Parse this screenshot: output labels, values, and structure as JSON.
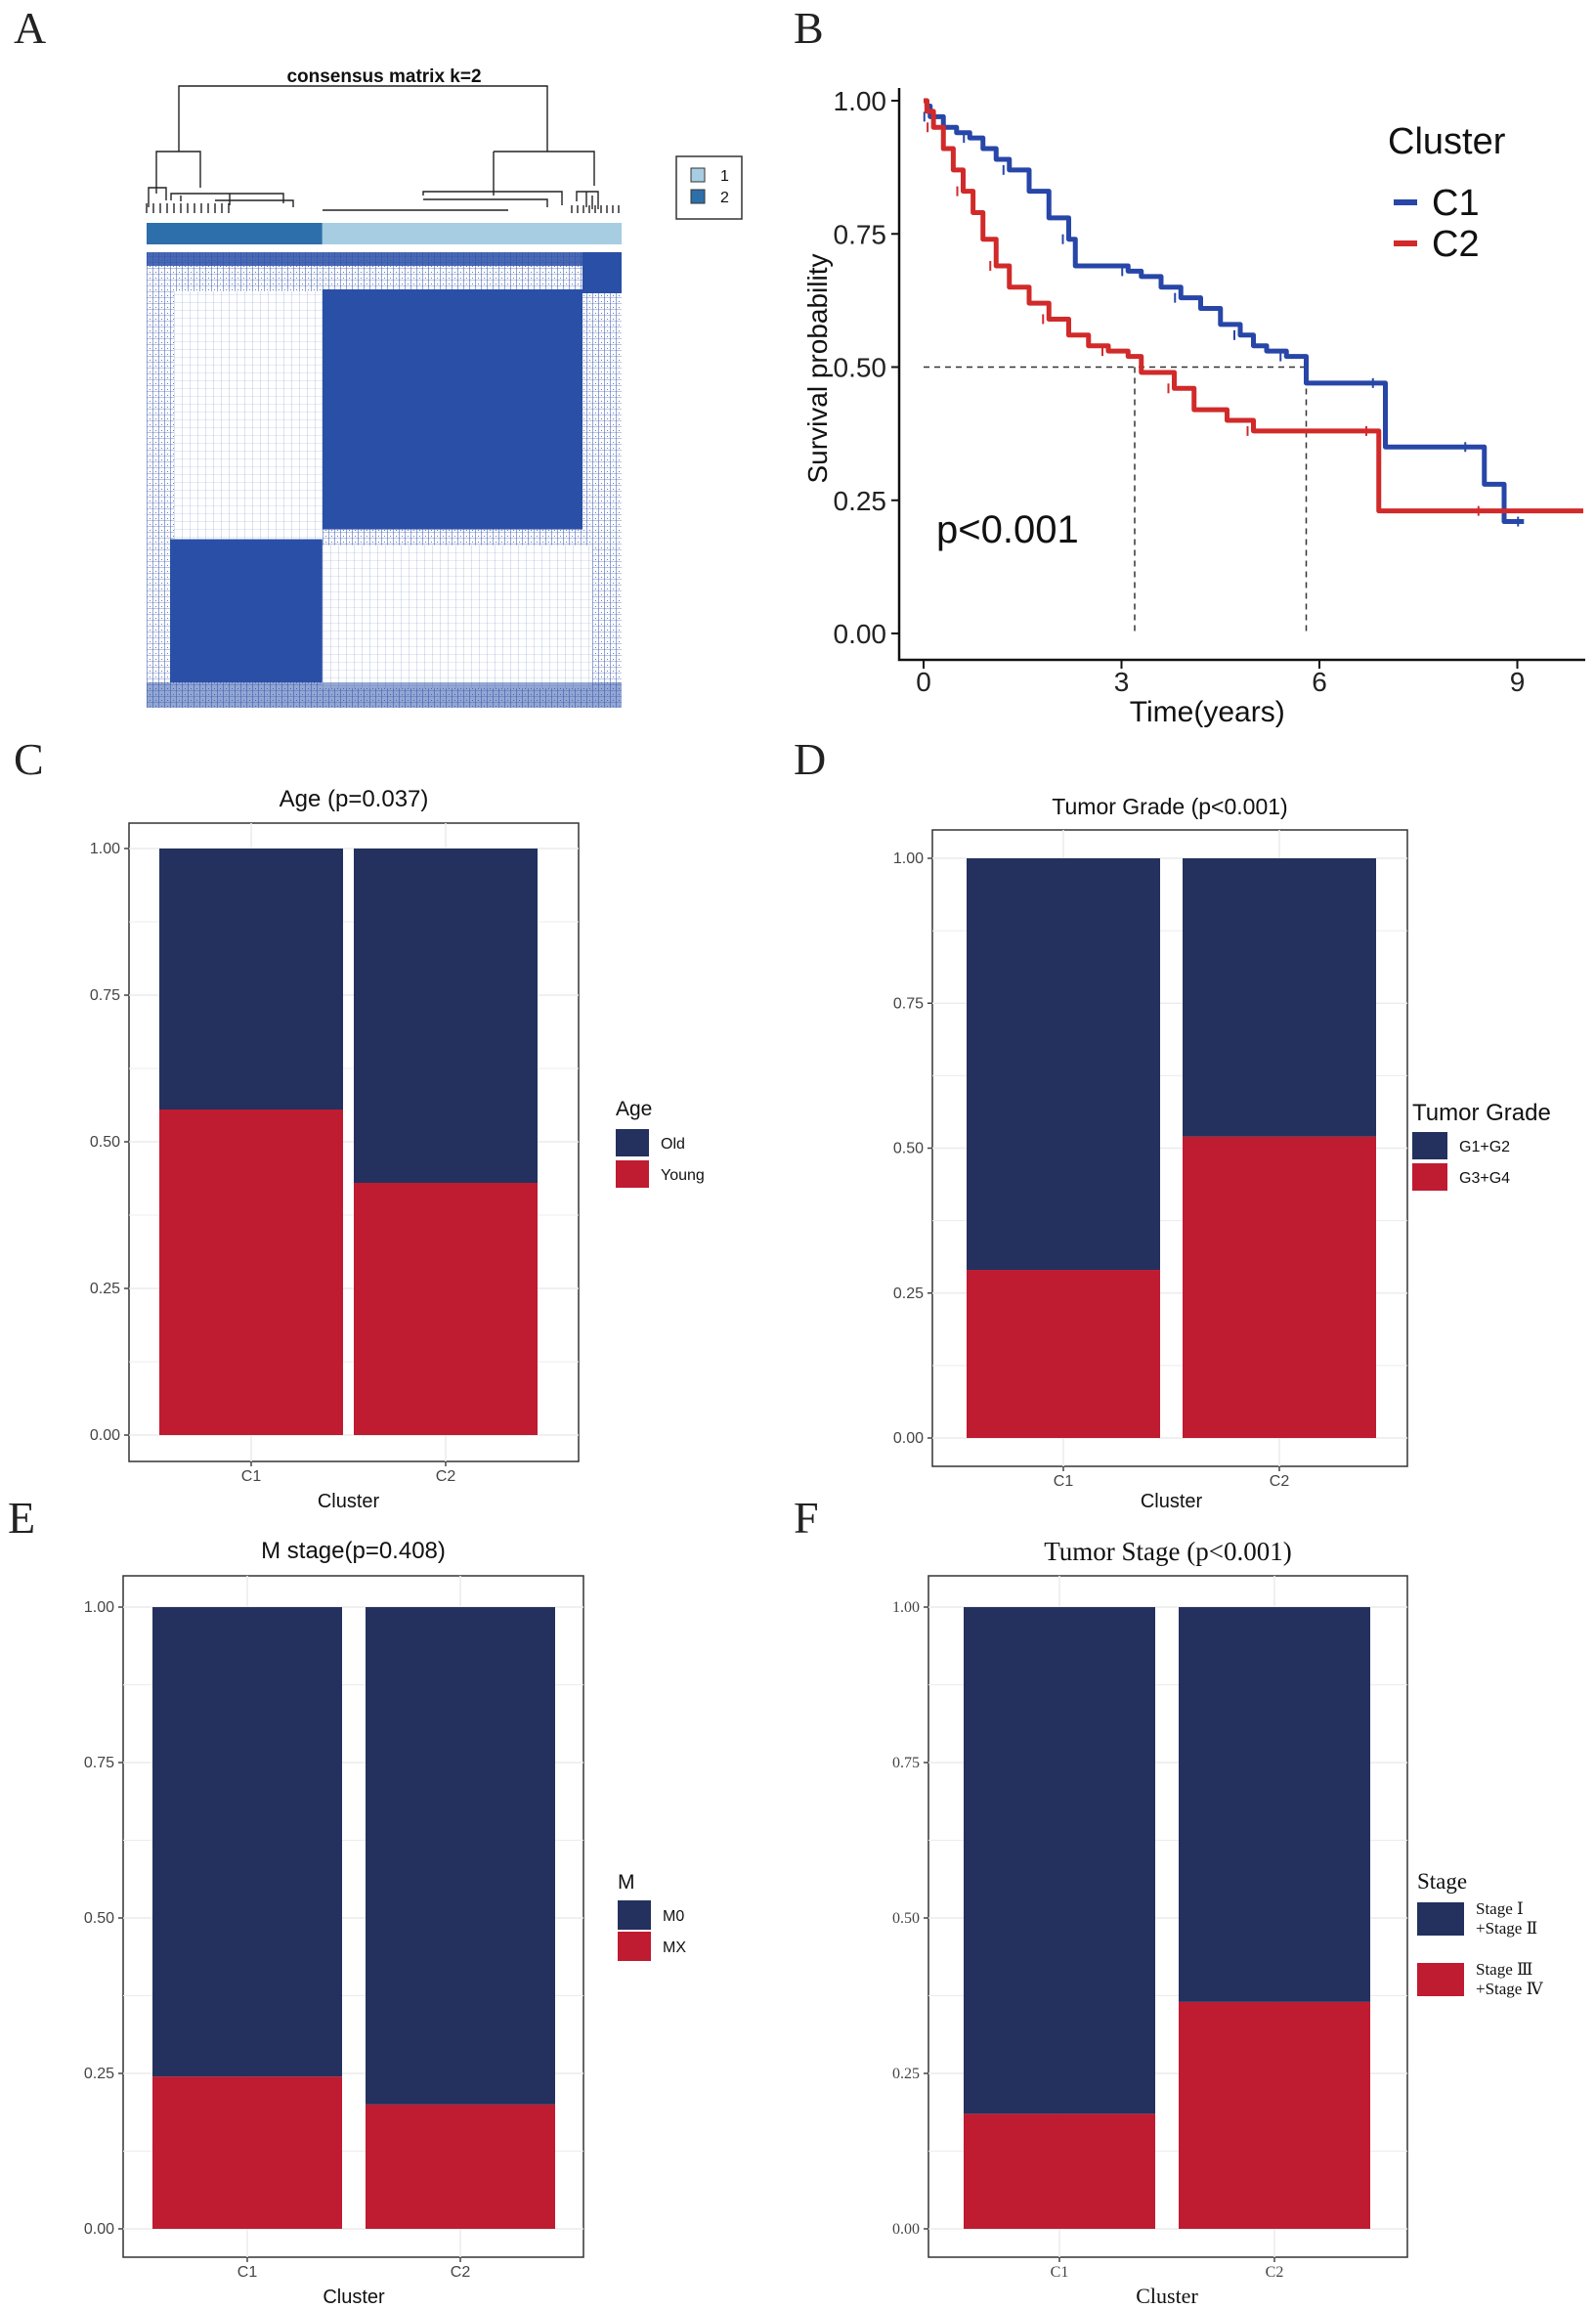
{
  "panel_letters": [
    "A",
    "B",
    "C",
    "D",
    "E",
    "F"
  ],
  "colors": {
    "navy": "#24315e",
    "crimson": "#bf1b31",
    "c1_line": "#2746a8",
    "c2_line": "#d12a2a",
    "matrix_blue": "#2a4fa7",
    "matrix_light": "#a7cde2",
    "matrix_dark": "#2d6faa"
  },
  "chart_data": [
    {
      "panel": "A",
      "type": "heatmap",
      "title": "consensus matrix k=2",
      "legend": [
        "1",
        "2"
      ],
      "cluster_fractions": [
        0.37,
        0.63
      ]
    },
    {
      "panel": "B",
      "type": "line",
      "title": "",
      "xlabel": "Time(years)",
      "ylabel": "Survival probability",
      "xlim": [
        0,
        10
      ],
      "ylim": [
        0,
        1
      ],
      "xticks": [
        "0",
        "3",
        "6",
        "9"
      ],
      "yticks": [
        "0.00",
        "0.25",
        "0.50",
        "0.75",
        "1.00"
      ],
      "legend_title": "Cluster",
      "legend": [
        "C1",
        "C2"
      ],
      "annotation": "p<0.001",
      "median_survival": {
        "C1": 5.8,
        "C2": 3.2
      },
      "series": [
        {
          "name": "C1",
          "x": [
            0,
            0.05,
            0.1,
            0.3,
            0.5,
            0.7,
            0.9,
            1.1,
            1.3,
            1.6,
            1.9,
            2.2,
            2.3,
            2.8,
            3.1,
            3.3,
            3.6,
            3.9,
            4.2,
            4.5,
            4.8,
            5.0,
            5.2,
            5.5,
            5.8,
            6.0,
            6.9,
            7.0,
            7.5,
            8.3,
            8.5,
            8.8,
            9.1
          ],
          "y": [
            1.0,
            0.99,
            0.97,
            0.95,
            0.94,
            0.93,
            0.91,
            0.89,
            0.87,
            0.83,
            0.78,
            0.74,
            0.69,
            0.69,
            0.68,
            0.67,
            0.65,
            0.63,
            0.61,
            0.58,
            0.56,
            0.54,
            0.53,
            0.52,
            0.47,
            0.47,
            0.47,
            0.35,
            0.35,
            0.35,
            0.28,
            0.21,
            0.21
          ]
        },
        {
          "name": "C2",
          "x": [
            0,
            0.05,
            0.15,
            0.3,
            0.45,
            0.6,
            0.75,
            0.9,
            1.1,
            1.3,
            1.6,
            1.9,
            2.2,
            2.5,
            2.8,
            3.1,
            3.3,
            3.8,
            4.1,
            4.6,
            5.0,
            6.0,
            6.5,
            6.8,
            6.9,
            7.5,
            8.5,
            10.0
          ],
          "y": [
            1.0,
            0.98,
            0.95,
            0.91,
            0.87,
            0.83,
            0.79,
            0.74,
            0.69,
            0.65,
            0.62,
            0.59,
            0.56,
            0.54,
            0.53,
            0.52,
            0.49,
            0.46,
            0.42,
            0.4,
            0.38,
            0.38,
            0.38,
            0.38,
            0.23,
            0.23,
            0.23,
            0.23
          ]
        }
      ]
    },
    {
      "panel": "C",
      "type": "bar",
      "title": "Age (p=0.037)",
      "xlabel": "Cluster",
      "ylabel": "",
      "categories": [
        "C1",
        "C2"
      ],
      "ylim": [
        0,
        1
      ],
      "yticks": [
        "0.00",
        "0.25",
        "0.50",
        "0.75",
        "1.00"
      ],
      "legend_title": "Age",
      "series": [
        {
          "name": "Old",
          "values": [
            0.445,
            0.57
          ]
        },
        {
          "name": "Young",
          "values": [
            0.555,
            0.43
          ]
        }
      ]
    },
    {
      "panel": "D",
      "type": "bar",
      "title": "Tumor Grade (p<0.001)",
      "xlabel": "Cluster",
      "ylabel": "",
      "categories": [
        "C1",
        "C2"
      ],
      "ylim": [
        0,
        1
      ],
      "yticks": [
        "0.00",
        "0.25",
        "0.50",
        "0.75",
        "1.00"
      ],
      "legend_title": "Tumor Grade",
      "series": [
        {
          "name": "G1+G2",
          "values": [
            0.71,
            0.48
          ]
        },
        {
          "name": "G3+G4",
          "values": [
            0.29,
            0.52
          ]
        }
      ]
    },
    {
      "panel": "E",
      "type": "bar",
      "title": "M stage(p=0.408)",
      "xlabel": "Cluster",
      "ylabel": "",
      "categories": [
        "C1",
        "C2"
      ],
      "ylim": [
        0,
        1
      ],
      "yticks": [
        "0.00",
        "0.25",
        "0.50",
        "0.75",
        "1.00"
      ],
      "legend_title": "M",
      "series": [
        {
          "name": "M0",
          "values": [
            0.755,
            0.8
          ]
        },
        {
          "name": "MX",
          "values": [
            0.245,
            0.2
          ]
        }
      ]
    },
    {
      "panel": "F",
      "type": "bar",
      "title": "Tumor Stage (p<0.001)",
      "xlabel": "Cluster",
      "ylabel": "",
      "categories": [
        "C1",
        "C2"
      ],
      "ylim": [
        0,
        1
      ],
      "yticks": [
        "0.00",
        "0.25",
        "0.50",
        "0.75",
        "1.00"
      ],
      "legend_title": "Stage",
      "series": [
        {
          "name": "Stage Ⅰ +Stage Ⅱ",
          "label_lines": [
            "Stage Ⅰ",
            "+Stage Ⅱ"
          ],
          "values": [
            0.815,
            0.635
          ]
        },
        {
          "name": "Stage Ⅲ +Stage Ⅳ",
          "label_lines": [
            "Stage Ⅲ",
            "+Stage Ⅳ"
          ],
          "values": [
            0.185,
            0.365
          ]
        }
      ]
    }
  ]
}
